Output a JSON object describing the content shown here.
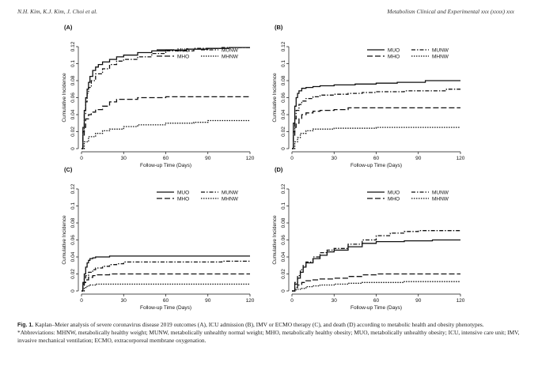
{
  "header": {
    "left": "N.H. Kim, K.J. Kim, J. Choi et al.",
    "right": "Metabolism Clinical and Experimental xxx (xxxx) xxx"
  },
  "caption": {
    "label": "Fig. 1.",
    "text": "Kaplan–Meier analysis of severe coronavirus disease 2019 outcomes (A), ICU admission (B), IMV or ECMO therapy (C), and death (D) according to metabolic health and obesity phenotypes.",
    "abbrev": "*Abbreviations: MHNW, metabolically healthy weight; MUNW, metabolically unhealthy normal weight; MHO, metabolically healthy obesity; MUO, metabolically unhealthy obesity; ICU, intensive care unit; IMV, invasive mechanical ventilation; ECMO, extracorporeal membrane oxygenation."
  },
  "chart_data": [
    {
      "panel": "(A)",
      "type": "line",
      "xlabel": "Follow-up Time (Days)",
      "ylabel": "Cumulative Incidence",
      "xlim": [
        0,
        120
      ],
      "ylim": [
        0,
        0.12
      ],
      "xticks": [
        0,
        30,
        60,
        90,
        120
      ],
      "yticks": [
        "0",
        "0.02",
        "0.04",
        "0.06",
        "0.08",
        "0.1",
        "0.12"
      ],
      "legend": "top-right",
      "series": [
        {
          "name": "MUO",
          "dash": "solid",
          "x": [
            0,
            1,
            2,
            3,
            4,
            5,
            6,
            8,
            10,
            12,
            15,
            20,
            25,
            30,
            40,
            50,
            60,
            75,
            90,
            105,
            120
          ],
          "y": [
            0,
            0.025,
            0.045,
            0.06,
            0.07,
            0.078,
            0.085,
            0.092,
            0.096,
            0.099,
            0.102,
            0.105,
            0.108,
            0.11,
            0.113,
            0.115,
            0.116,
            0.117,
            0.118,
            0.119,
            0.119
          ]
        },
        {
          "name": "MHO",
          "dash": "long",
          "x": [
            0,
            1,
            2,
            3,
            5,
            7,
            10,
            15,
            20,
            25,
            30,
            40,
            50,
            60,
            120
          ],
          "y": [
            0,
            0.015,
            0.025,
            0.035,
            0.04,
            0.043,
            0.046,
            0.05,
            0.055,
            0.058,
            0.058,
            0.06,
            0.06,
            0.061,
            0.061
          ]
        },
        {
          "name": "MUNW",
          "dash": "dashdot",
          "x": [
            0,
            1,
            2,
            3,
            4,
            5,
            7,
            10,
            15,
            20,
            25,
            30,
            40,
            50,
            60,
            80,
            100,
            120
          ],
          "y": [
            0,
            0.02,
            0.04,
            0.055,
            0.065,
            0.072,
            0.08,
            0.088,
            0.094,
            0.099,
            0.103,
            0.105,
            0.108,
            0.112,
            0.115,
            0.118,
            0.119,
            0.119
          ]
        },
        {
          "name": "MHNW",
          "dash": "dotted",
          "x": [
            0,
            2,
            5,
            10,
            15,
            20,
            30,
            40,
            60,
            80,
            90,
            120
          ],
          "y": [
            0,
            0.008,
            0.014,
            0.018,
            0.021,
            0.023,
            0.026,
            0.028,
            0.03,
            0.031,
            0.033,
            0.033
          ]
        }
      ]
    },
    {
      "panel": "(B)",
      "type": "line",
      "xlabel": "Follow-up Time (Days)",
      "ylabel": "Cumulative Incidence",
      "xlim": [
        0,
        120
      ],
      "ylim": [
        0,
        0.12
      ],
      "xticks": [
        0,
        30,
        60,
        90,
        120
      ],
      "yticks": [
        "0",
        "0.02",
        "0.04",
        "0.06",
        "0.08",
        "0.1",
        "0.12"
      ],
      "legend": "top-right",
      "series": [
        {
          "name": "MUO",
          "dash": "solid",
          "x": [
            0,
            1,
            2,
            3,
            4,
            5,
            7,
            10,
            15,
            20,
            30,
            45,
            60,
            75,
            90,
            95,
            100,
            120
          ],
          "y": [
            0,
            0.03,
            0.05,
            0.06,
            0.065,
            0.068,
            0.071,
            0.072,
            0.073,
            0.074,
            0.075,
            0.076,
            0.077,
            0.078,
            0.078,
            0.08,
            0.08,
            0.08
          ]
        },
        {
          "name": "MHO",
          "dash": "long",
          "x": [
            0,
            1,
            2,
            3,
            5,
            7,
            10,
            15,
            20,
            30,
            40,
            60,
            120
          ],
          "y": [
            0,
            0.015,
            0.025,
            0.03,
            0.035,
            0.04,
            0.042,
            0.044,
            0.045,
            0.046,
            0.048,
            0.048,
            0.048
          ]
        },
        {
          "name": "MUNW",
          "dash": "dashdot",
          "x": [
            0,
            1,
            2,
            3,
            5,
            7,
            10,
            15,
            20,
            30,
            40,
            50,
            60,
            80,
            100,
            110,
            120
          ],
          "y": [
            0,
            0.02,
            0.035,
            0.045,
            0.052,
            0.056,
            0.059,
            0.061,
            0.063,
            0.064,
            0.065,
            0.066,
            0.067,
            0.068,
            0.068,
            0.07,
            0.07
          ]
        },
        {
          "name": "MHNW",
          "dash": "dotted",
          "x": [
            0,
            2,
            4,
            6,
            10,
            15,
            30,
            60,
            120
          ],
          "y": [
            0,
            0.008,
            0.013,
            0.018,
            0.021,
            0.023,
            0.024,
            0.025,
            0.025
          ]
        }
      ]
    },
    {
      "panel": "(C)",
      "type": "line",
      "xlabel": "Follow-up Time (Days)",
      "ylabel": "Cumulative Incidence",
      "xlim": [
        0,
        120
      ],
      "ylim": [
        0,
        0.12
      ],
      "xticks": [
        0,
        30,
        60,
        90,
        120
      ],
      "yticks": [
        "0",
        "0.02",
        "0.04",
        "0.06",
        "0.08",
        "0.1",
        "0.12"
      ],
      "legend": "top-right",
      "series": [
        {
          "name": "MUO",
          "dash": "solid",
          "x": [
            0,
            1,
            2,
            3,
            4,
            5,
            6,
            8,
            10,
            15,
            20,
            30,
            60,
            120
          ],
          "y": [
            0,
            0.01,
            0.02,
            0.028,
            0.033,
            0.036,
            0.038,
            0.039,
            0.04,
            0.04,
            0.041,
            0.041,
            0.041,
            0.041
          ]
        },
        {
          "name": "MHO",
          "dash": "long",
          "x": [
            0,
            1,
            2,
            3,
            5,
            8,
            10,
            20,
            30,
            120
          ],
          "y": [
            0,
            0.006,
            0.01,
            0.013,
            0.016,
            0.018,
            0.019,
            0.02,
            0.02,
            0.02
          ]
        },
        {
          "name": "MUNW",
          "dash": "dashdot",
          "x": [
            0,
            1,
            2,
            3,
            5,
            8,
            10,
            15,
            20,
            25,
            30,
            60,
            100,
            120
          ],
          "y": [
            0,
            0.008,
            0.014,
            0.018,
            0.022,
            0.025,
            0.027,
            0.029,
            0.031,
            0.032,
            0.034,
            0.034,
            0.035,
            0.035
          ]
        },
        {
          "name": "MHNW",
          "dash": "dotted",
          "x": [
            0,
            2,
            4,
            6,
            10,
            120
          ],
          "y": [
            0,
            0.004,
            0.006,
            0.007,
            0.008,
            0.008
          ]
        }
      ]
    },
    {
      "panel": "(D)",
      "type": "line",
      "xlabel": "Follow-up Time (Days)",
      "ylabel": "Cumulative Incidence",
      "xlim": [
        0,
        120
      ],
      "ylim": [
        0,
        0.12
      ],
      "xticks": [
        0,
        30,
        60,
        90,
        120
      ],
      "yticks": [
        "0",
        "0.02",
        "0.04",
        "0.06",
        "0.08",
        "0.1",
        "0.12"
      ],
      "legend": "top-right",
      "series": [
        {
          "name": "MUO",
          "dash": "solid",
          "x": [
            0,
            2,
            4,
            6,
            8,
            10,
            15,
            20,
            25,
            30,
            40,
            50,
            60,
            80,
            100,
            120
          ],
          "y": [
            0,
            0.008,
            0.015,
            0.022,
            0.028,
            0.033,
            0.038,
            0.042,
            0.046,
            0.048,
            0.052,
            0.056,
            0.058,
            0.059,
            0.06,
            0.06
          ]
        },
        {
          "name": "MHO",
          "dash": "long",
          "x": [
            0,
            2,
            4,
            7,
            10,
            15,
            20,
            30,
            40,
            50,
            60,
            90,
            120
          ],
          "y": [
            0,
            0.004,
            0.007,
            0.01,
            0.012,
            0.013,
            0.014,
            0.015,
            0.017,
            0.019,
            0.02,
            0.02,
            0.02
          ]
        },
        {
          "name": "MUNW",
          "dash": "dashdot",
          "x": [
            0,
            2,
            4,
            6,
            8,
            10,
            15,
            20,
            25,
            30,
            40,
            50,
            60,
            70,
            80,
            90,
            120
          ],
          "y": [
            0,
            0.01,
            0.018,
            0.025,
            0.03,
            0.034,
            0.04,
            0.045,
            0.048,
            0.05,
            0.055,
            0.06,
            0.065,
            0.068,
            0.07,
            0.071,
            0.071
          ]
        },
        {
          "name": "MHNW",
          "dash": "dotted",
          "x": [
            0,
            3,
            6,
            10,
            15,
            20,
            30,
            40,
            50,
            60,
            80,
            100,
            120
          ],
          "y": [
            0,
            0.002,
            0.003,
            0.005,
            0.006,
            0.007,
            0.008,
            0.009,
            0.01,
            0.01,
            0.011,
            0.011,
            0.011
          ]
        }
      ]
    }
  ]
}
